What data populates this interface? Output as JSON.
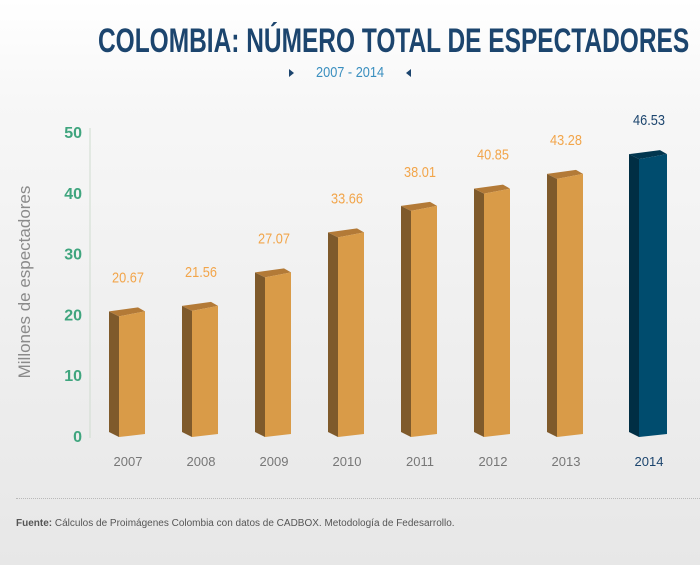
{
  "header": {
    "title": "COLOMBIA: NÚMERO TOTAL DE ESPECTADORES",
    "subtitle": "2007 - 2014"
  },
  "footer": {
    "source_label": "Fuente:",
    "source_text": "Cálculos de Proimágenes Colombia con datos de CADBOX. Metodología de Fedesarrollo."
  },
  "colors": {
    "bar_front": "#d99b48",
    "bar_side": "#7f5a2b",
    "bar_top": "#b37a37",
    "highlight_front": "#004c6e",
    "highlight_side": "#002e44",
    "highlight_top": "#01364f",
    "value_label": "#f2a54a",
    "highlight_label": "#1c456e",
    "ytick": "#3fa57e",
    "xtick": "#777777",
    "title": "#1c456e"
  },
  "chart_data": {
    "type": "bar",
    "title": "COLOMBIA: NÚMERO TOTAL DE ESPECTADORES",
    "subtitle": "2007 - 2014",
    "xlabel": "",
    "ylabel": "Millones de espectadores",
    "categories": [
      "2007",
      "2008",
      "2009",
      "2010",
      "2011",
      "2012",
      "2013",
      "2014"
    ],
    "values": [
      20.67,
      21.56,
      27.07,
      33.66,
      38.01,
      40.85,
      43.28,
      46.53
    ],
    "value_labels": [
      "20.67",
      "21.56",
      "27.07",
      "33.66",
      "38.01",
      "40.85",
      "43.28",
      "46.53"
    ],
    "highlight_index": 7,
    "ylim": [
      0,
      50
    ],
    "yticks": [
      0,
      10,
      20,
      30,
      40,
      50
    ],
    "grid": false,
    "legend": "none"
  }
}
